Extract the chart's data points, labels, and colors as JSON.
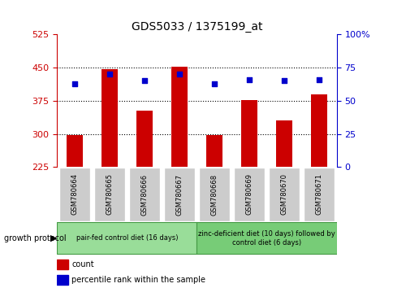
{
  "title": "GDS5033 / 1375199_at",
  "samples": [
    "GSM780664",
    "GSM780665",
    "GSM780666",
    "GSM780667",
    "GSM780668",
    "GSM780669",
    "GSM780670",
    "GSM780671"
  ],
  "bar_values": [
    298,
    446,
    352,
    453,
    297,
    376,
    330,
    390
  ],
  "bar_bottom": 225,
  "percentile_values": [
    63,
    70,
    65,
    70,
    63,
    66,
    65,
    66
  ],
  "ylim_left": [
    225,
    525
  ],
  "ylim_right": [
    0,
    100
  ],
  "yticks_left": [
    225,
    300,
    375,
    450,
    525
  ],
  "yticks_right": [
    0,
    25,
    50,
    75,
    100
  ],
  "bar_color": "#cc0000",
  "dot_color": "#0000cc",
  "group1_label": "pair-fed control diet (16 days)",
  "group2_label": "zinc-deficient diet (10 days) followed by\ncontrol diet (6 days)",
  "protocol_label": "growth protocol",
  "legend_count": "count",
  "legend_percentile": "percentile rank within the sample",
  "group1_color": "#99dd99",
  "group2_color": "#77cc77",
  "sample_box_color": "#cccccc",
  "bar_width": 0.45,
  "gridline_dotted_at": [
    300,
    375,
    450
  ],
  "title_fontsize": 10,
  "tick_fontsize": 8,
  "label_fontsize": 7,
  "sample_fontsize": 6
}
